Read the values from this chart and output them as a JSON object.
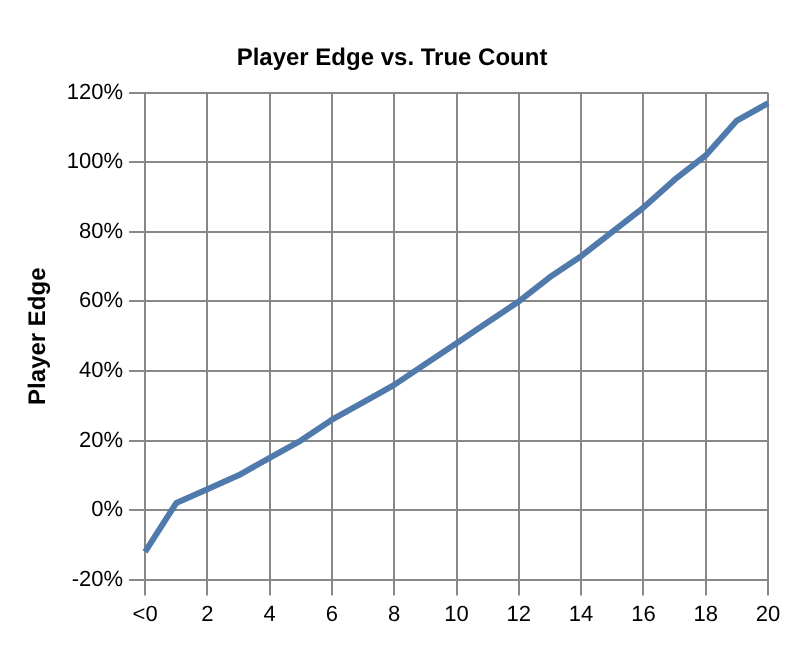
{
  "chart_data": {
    "type": "line",
    "title": "Player Edge vs. True Count",
    "ylabel": "Player Edge",
    "categories": [
      "<0",
      null,
      "2",
      null,
      "4",
      null,
      "6",
      null,
      "8",
      null,
      "10",
      null,
      "12",
      null,
      "14",
      null,
      "16",
      null,
      "18",
      null,
      "20"
    ],
    "series": [
      {
        "color": "#4f7aab",
        "values": [
          -12,
          2,
          6,
          10,
          15,
          20,
          26,
          31,
          36,
          42,
          48,
          54,
          60,
          67,
          73,
          80,
          87,
          95,
          102,
          112,
          117
        ]
      }
    ],
    "ylim": [
      -20,
      120
    ],
    "yticks": [
      {
        "value": -20,
        "label": "-20%"
      },
      {
        "value": 0,
        "label": "0%"
      },
      {
        "value": 20,
        "label": "20%"
      },
      {
        "value": 40,
        "label": "40%"
      },
      {
        "value": 60,
        "label": "60%"
      },
      {
        "value": 80,
        "label": "80%"
      },
      {
        "value": 100,
        "label": "100%"
      },
      {
        "value": 120,
        "label": "120%"
      }
    ],
    "grid": true,
    "legend": false,
    "marker": "none",
    "line_style": "solid"
  }
}
